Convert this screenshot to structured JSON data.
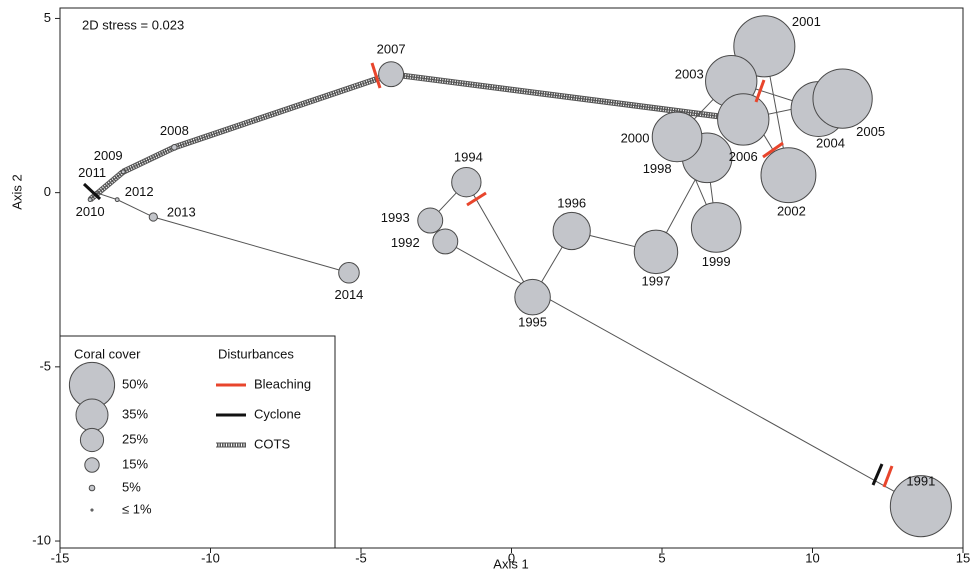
{
  "chart_data": {
    "type": "bubble-trajectory",
    "annotation": "2D stress = 0.023",
    "x_label": "Axis 1",
    "y_label": "Axis 2",
    "xlim": [
      -15,
      15
    ],
    "ylim": [
      -10.2,
      5.3
    ],
    "xticks": [
      -15,
      -10,
      -5,
      0,
      5,
      10,
      15
    ],
    "yticks": [
      5,
      0,
      -5,
      -10
    ],
    "labels": [
      "1991",
      "1992",
      "1993",
      "1994",
      "1995",
      "1996",
      "1997",
      "1998",
      "1999",
      "2000",
      "2001",
      "2002",
      "2003",
      "2004",
      "2005",
      "2006",
      "2007",
      "2008",
      "2009",
      "2010",
      "2011",
      "2012",
      "2013",
      "2014"
    ],
    "x": [
      13.6,
      -2.2,
      -2.7,
      -1.5,
      0.7,
      2.0,
      4.8,
      6.5,
      6.8,
      5.5,
      8.4,
      9.2,
      7.3,
      10.2,
      11.0,
      7.7,
      -4.0,
      -11.2,
      -12.9,
      -14.0,
      -13.8,
      -13.1,
      -11.9,
      -5.4
    ],
    "y": [
      -9.0,
      -1.4,
      -0.8,
      0.3,
      -3.0,
      -1.1,
      -1.7,
      1.0,
      -1.0,
      1.6,
      4.2,
      0.5,
      3.2,
      2.4,
      2.7,
      2.1,
      3.4,
      1.3,
      0.6,
      -0.2,
      0.0,
      -0.2,
      -0.7,
      -2.3
    ],
    "sizes": [
      68,
      27,
      27,
      32,
      39,
      41,
      48,
      55,
      55,
      55,
      68,
      61,
      57,
      61,
      66,
      57,
      27,
      5,
      3,
      3,
      1,
      3,
      8,
      22
    ],
    "bubble_legend": {
      "title": "Coral cover",
      "values": [
        50,
        35,
        25,
        15,
        5,
        1
      ],
      "value_labels": [
        "50%",
        "35%",
        "25%",
        "15%",
        "5%",
        "≤ 1%"
      ]
    },
    "disturbance_legend": {
      "title": "Disturbances",
      "items": [
        {
          "name": "Bleaching",
          "color": "#e8452c"
        },
        {
          "name": "Cyclone",
          "color": "#111111"
        },
        {
          "name": "COTS",
          "color": "#555555"
        }
      ]
    }
  }
}
